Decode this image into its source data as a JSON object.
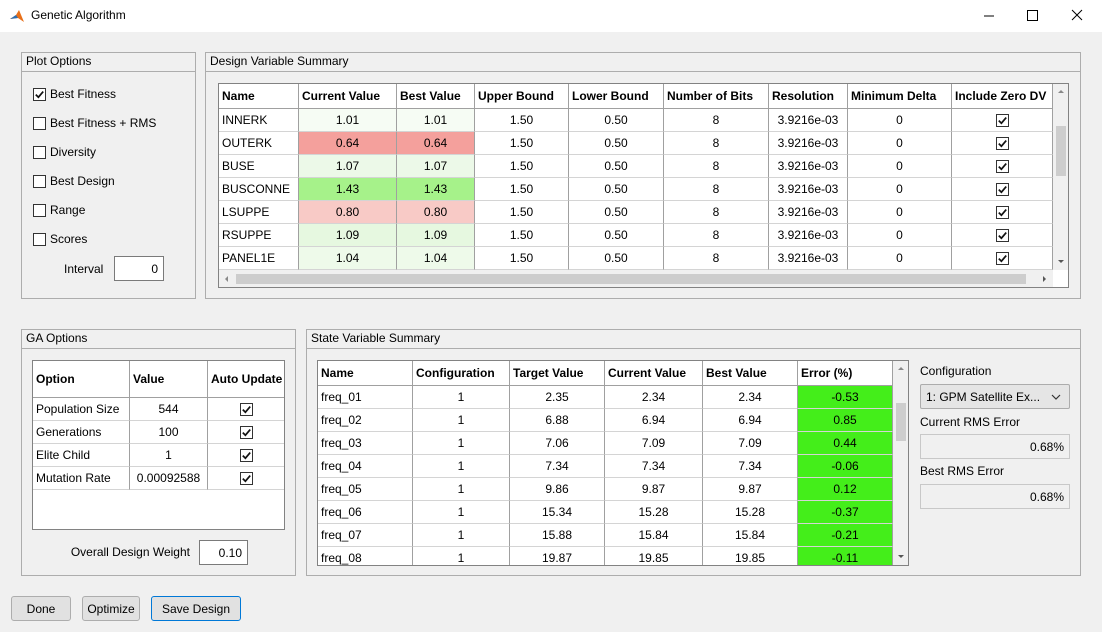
{
  "window": {
    "title": "Genetic Algorithm"
  },
  "plot_options": {
    "title": "Plot Options",
    "items": [
      {
        "label": "Best Fitness",
        "checked": true
      },
      {
        "label": "Best Fitness + RMS",
        "checked": false
      },
      {
        "label": "Diversity",
        "checked": false
      },
      {
        "label": "Best Design",
        "checked": false
      },
      {
        "label": "Range",
        "checked": false
      },
      {
        "label": "Scores",
        "checked": false
      }
    ],
    "interval_label": "Interval",
    "interval_value": "0"
  },
  "design_variable_summary": {
    "title": "Design Variable Summary",
    "columns": [
      "Name",
      "Current Value",
      "Best Value",
      "Upper Bound",
      "Lower Bound",
      "Number of Bits",
      "Resolution",
      "Minimum Delta",
      "Include Zero DV"
    ],
    "rows": [
      [
        "INNERK",
        "1.01",
        "1.01",
        "1.50",
        "0.50",
        "8",
        "3.9216e-03",
        "0",
        true
      ],
      [
        "OUTERK",
        "0.64",
        "0.64",
        "1.50",
        "0.50",
        "8",
        "3.9216e-03",
        "0",
        true
      ],
      [
        "BUSE",
        "1.07",
        "1.07",
        "1.50",
        "0.50",
        "8",
        "3.9216e-03",
        "0",
        true
      ],
      [
        "BUSCONNE",
        "1.43",
        "1.43",
        "1.50",
        "0.50",
        "8",
        "3.9216e-03",
        "0",
        true
      ],
      [
        "LSUPPE",
        "0.80",
        "0.80",
        "1.50",
        "0.50",
        "8",
        "3.9216e-03",
        "0",
        true
      ],
      [
        "RSUPPE",
        "1.09",
        "1.09",
        "1.50",
        "0.50",
        "8",
        "3.9216e-03",
        "0",
        true
      ],
      [
        "PANEL1E",
        "1.04",
        "1.04",
        "1.50",
        "0.50",
        "8",
        "3.9216e-03",
        "0",
        true
      ]
    ],
    "value_colors": [
      "#f6fcf4",
      "#f4a09c",
      "#ecf9e8",
      "#a6f28a",
      "#f8cac6",
      "#e6f8e0",
      "#eefaea"
    ]
  },
  "ga_options": {
    "title": "GA Options",
    "columns": [
      "Option",
      "Value",
      "Auto Update"
    ],
    "rows": [
      [
        "Population Size",
        "544",
        true
      ],
      [
        "Generations",
        "100",
        true
      ],
      [
        "Elite Child",
        "1",
        true
      ],
      [
        "Mutation Rate",
        "0.00092588",
        true
      ]
    ],
    "weight_label": "Overall Design Weight",
    "weight_value": "0.10"
  },
  "state_variable_summary": {
    "title": "State Variable Summary",
    "columns": [
      "Name",
      "Configuration",
      "Target Value",
      "Current Value",
      "Best Value",
      "Error (%)"
    ],
    "rows": [
      [
        "freq_01",
        "1",
        "2.35",
        "2.34",
        "2.34",
        "-0.53"
      ],
      [
        "freq_02",
        "1",
        "6.88",
        "6.94",
        "6.94",
        "0.85"
      ],
      [
        "freq_03",
        "1",
        "7.06",
        "7.09",
        "7.09",
        "0.44"
      ],
      [
        "freq_04",
        "1",
        "7.34",
        "7.34",
        "7.34",
        "-0.06"
      ],
      [
        "freq_05",
        "1",
        "9.86",
        "9.87",
        "9.87",
        "0.12"
      ],
      [
        "freq_06",
        "1",
        "15.34",
        "15.28",
        "15.28",
        "-0.37"
      ],
      [
        "freq_07",
        "1",
        "15.88",
        "15.84",
        "15.84",
        "-0.21"
      ],
      [
        "freq_08",
        "1",
        "19.87",
        "19.85",
        "19.85",
        "-0.11"
      ]
    ],
    "error_color": "#44ee1a"
  },
  "side": {
    "configuration_label": "Configuration",
    "configuration_value": "1: GPM Satellite Ex...",
    "current_rms_label": "Current RMS Error",
    "current_rms_value": "0.68%",
    "best_rms_label": "Best RMS Error",
    "best_rms_value": "0.68%"
  },
  "buttons": [
    "Done",
    "Optimize",
    "Save Design"
  ]
}
